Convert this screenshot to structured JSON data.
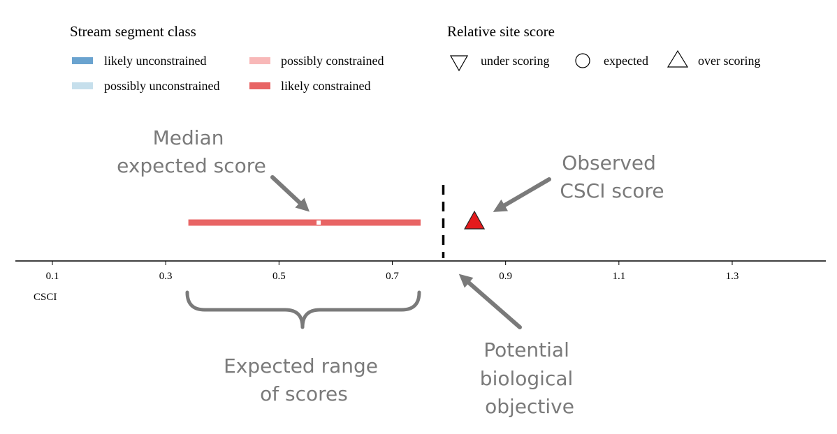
{
  "legend_segment": {
    "title": "Stream segment class",
    "items": [
      {
        "label": "likely unconstrained",
        "color": "#6aa3cf"
      },
      {
        "label": "possibly unconstrained",
        "color": "#c6dfec"
      },
      {
        "label": "possibly constrained",
        "color": "#f8b8b8"
      },
      {
        "label": "likely constrained",
        "color": "#e86464"
      }
    ]
  },
  "legend_score": {
    "title": "Relative site score",
    "items": [
      {
        "label": "under scoring",
        "icon": "triangle-down-icon"
      },
      {
        "label": "expected",
        "icon": "circle-icon"
      },
      {
        "label": "over scoring",
        "icon": "triangle-up-icon"
      }
    ]
  },
  "annotations": {
    "median": [
      "Median",
      "expected score"
    ],
    "observed": [
      "Observed",
      "CSCI score"
    ],
    "range": [
      "Expected range",
      "of scores"
    ],
    "objective": [
      "Potential",
      "biological",
      "objective"
    ]
  },
  "colors": {
    "range_bar": "#e86464",
    "observed_marker": "#e41a1c",
    "annotation": "#7a7a7a"
  },
  "chart_data": {
    "type": "range",
    "xlabel": "CSCI",
    "ylabel": "",
    "xlim": [
      0.03,
      1.46
    ],
    "ticks": [
      0.1,
      0.3,
      0.5,
      0.7,
      0.9,
      1.1,
      1.3
    ],
    "tick_labels": [
      "0.1",
      "0.3",
      "0.5",
      "0.7",
      "0.9",
      "1.1",
      "1.3"
    ],
    "grid": false,
    "expected_range": {
      "low": 0.34,
      "high": 0.75,
      "segment_class": "likely constrained"
    },
    "median_expected": 0.57,
    "observed_score": 0.845,
    "observed_relative": "over scoring",
    "biological_objective": 0.79
  }
}
